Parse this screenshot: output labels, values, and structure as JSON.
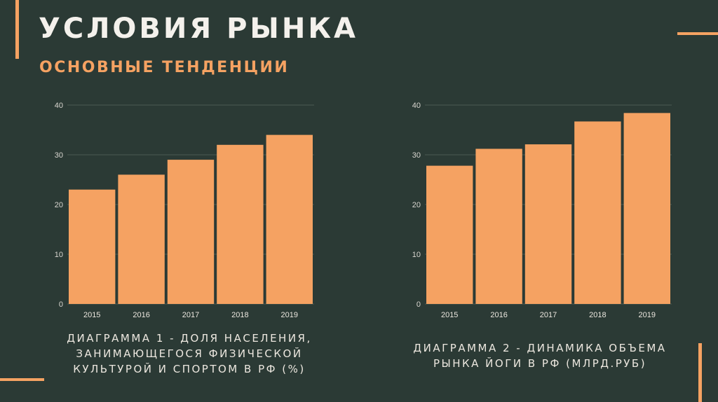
{
  "slide": {
    "title": "УСЛОВИЯ РЫНКА",
    "subtitle": "ОСНОВНЫЕ ТЕНДЕНЦИИ",
    "accent_color": "#f5a262",
    "background_color": "#2b3a35"
  },
  "chart_data": [
    {
      "type": "bar",
      "categories": [
        "2015",
        "2016",
        "2017",
        "2018",
        "2019"
      ],
      "values": [
        23,
        26,
        29,
        32,
        34
      ],
      "ylim": [
        0,
        40
      ],
      "yticks": [
        "0",
        "10",
        "20",
        "30",
        "40"
      ],
      "grid": true,
      "bar_color": "#f5a262",
      "caption_lines": [
        "Диаграмма 1 - доля населения,",
        "занимающегося физической",
        "культурой и спортом в РФ (%)"
      ]
    },
    {
      "type": "bar",
      "categories": [
        "2015",
        "2016",
        "2017",
        "2018",
        "2019"
      ],
      "values": [
        27.8,
        31.2,
        32.1,
        36.7,
        38.4
      ],
      "ylim": [
        0,
        40
      ],
      "yticks": [
        "0",
        "10",
        "20",
        "30",
        "40"
      ],
      "grid": true,
      "bar_color": "#f5a262",
      "caption_lines": [
        "Диаграмма 2 - динамика объема",
        "рынка йоги в РФ (млрд.руб)"
      ]
    }
  ]
}
